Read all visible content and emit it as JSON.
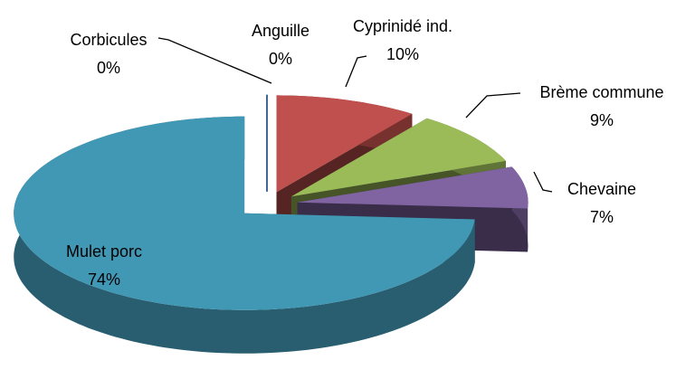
{
  "chart_data": {
    "type": "pie",
    "three_d": true,
    "exploded": true,
    "categories": [
      "Corbicules",
      "Anguille",
      "Cyprinidé ind.",
      "Brème commune",
      "Chevaine",
      "Mulet porc"
    ],
    "values": [
      0,
      0,
      10,
      9,
      7,
      74
    ],
    "value_labels": [
      "0%",
      "0%",
      "10%",
      "9%",
      "7%",
      "74%"
    ],
    "colors": [
      "#8eb4e3",
      "#4f81bd",
      "#c0504d",
      "#9bbb59",
      "#8064a2",
      "#4198b5"
    ]
  }
}
